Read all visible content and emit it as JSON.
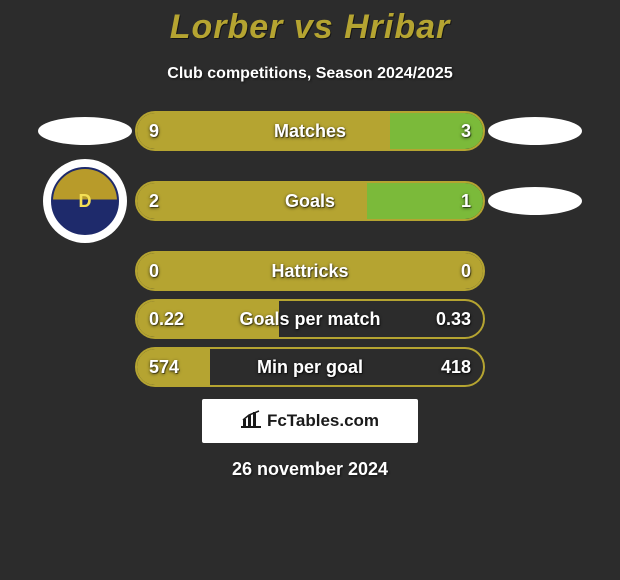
{
  "title": "Lorber vs Hribar",
  "subtitle": "Club competitions, Season 2024/2025",
  "date": "26 november 2024",
  "site": "FcTables.com",
  "colors": {
    "background": "#2c2c2c",
    "accent_left": "#b5a431",
    "accent_right": "#7bba3a",
    "title": "#b5a431",
    "text": "#ffffff",
    "badge_bg": "#ffffff",
    "crest_top": "#b89b2a",
    "crest_bottom": "#1e2a6b"
  },
  "sides": {
    "left_marker": "ellipse-white",
    "right_marker": "ellipse-white",
    "left_crest_letter": "D"
  },
  "metrics": [
    {
      "label": "Matches",
      "left_value": "9",
      "right_value": "3",
      "left_pct": 0.73,
      "right_pct": 0.27,
      "left_color": "#b5a431",
      "right_color": "#7bba3a",
      "show_left_marker": true,
      "show_right_marker": true
    },
    {
      "label": "Goals",
      "left_value": "2",
      "right_value": "1",
      "left_pct": 0.665,
      "right_pct": 0.335,
      "left_color": "#b5a431",
      "right_color": "#7bba3a",
      "show_left_crest": true,
      "show_right_marker": true
    },
    {
      "label": "Hattricks",
      "left_value": "0",
      "right_value": "0",
      "left_pct": 1.0,
      "right_pct": 0.0,
      "left_color": "#b5a431",
      "right_color": "#7bba3a"
    },
    {
      "label": "Goals per match",
      "left_value": "0.22",
      "right_value": "0.33",
      "left_pct": 0.41,
      "right_pct": 0.0,
      "left_color": "#b5a431",
      "right_color": "#7bba3a"
    },
    {
      "label": "Min per goal",
      "left_value": "574",
      "right_value": "418",
      "left_pct": 0.21,
      "right_pct": 0.0,
      "left_color": "#b5a431",
      "right_color": "#7bba3a"
    }
  ]
}
